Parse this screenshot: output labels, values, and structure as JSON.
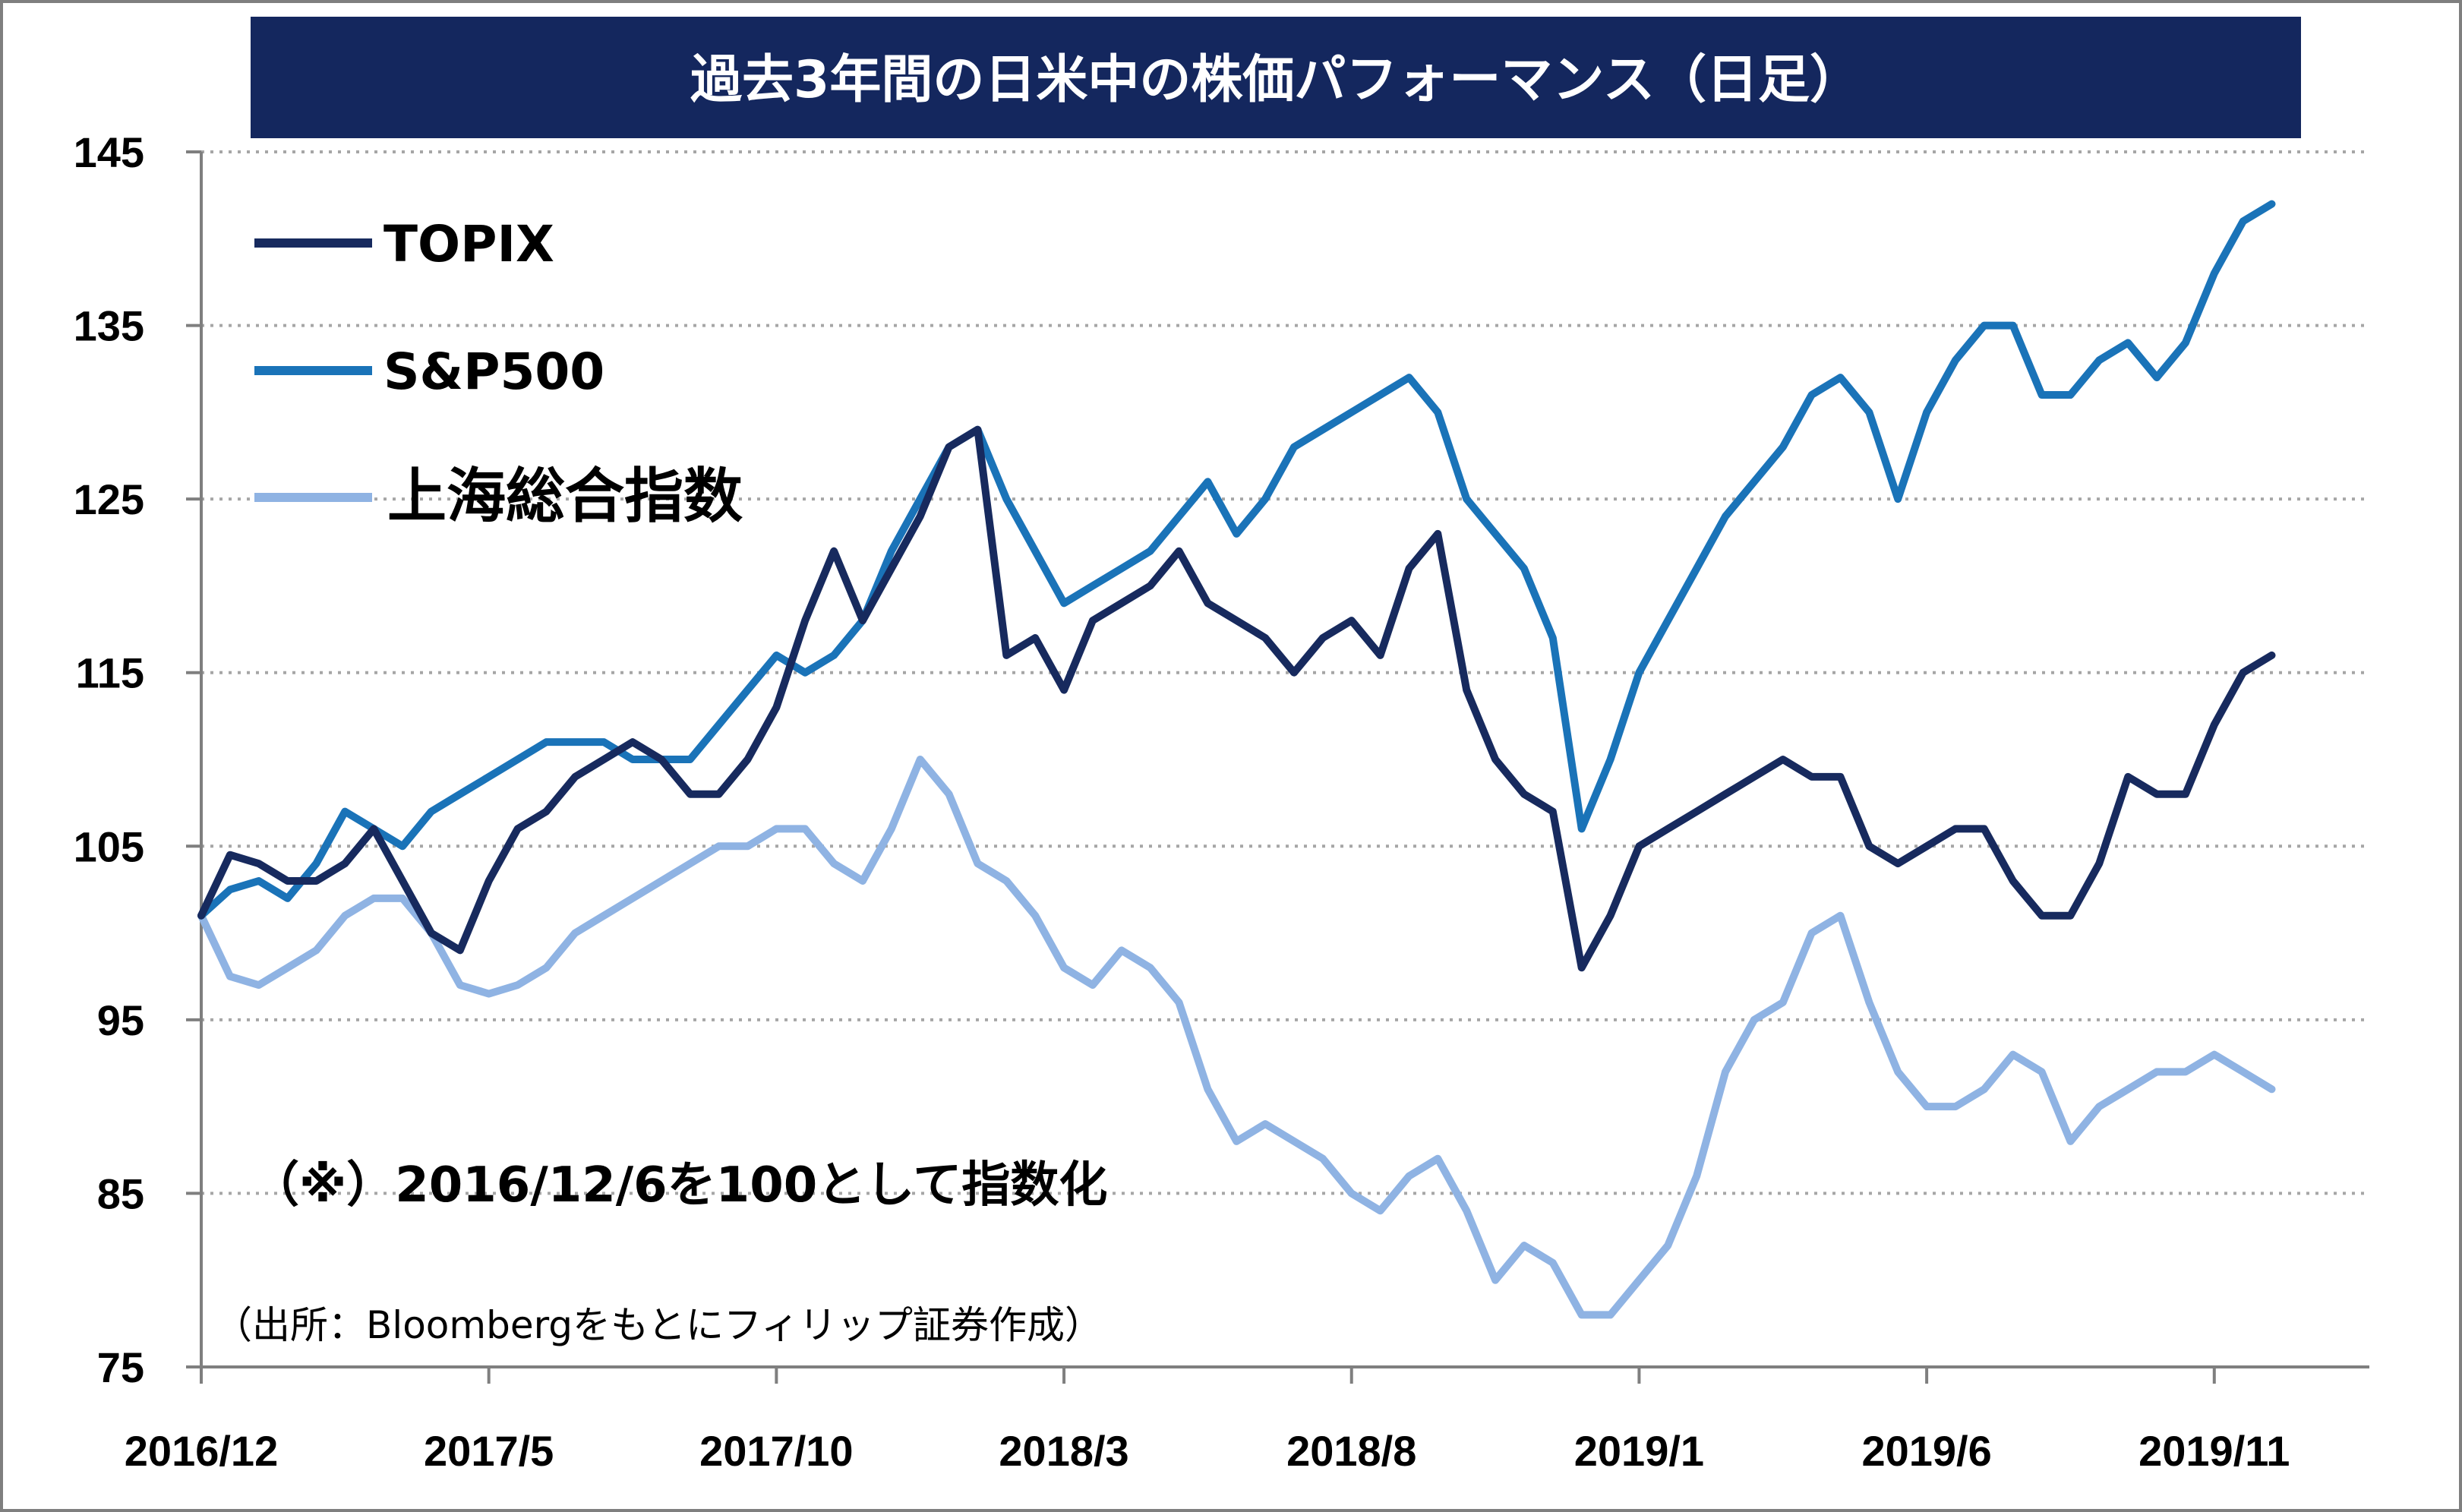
{
  "chart_data": {
    "type": "line",
    "title": "過去3年間の日米中の株価パフォーマンス（日足）",
    "note": "（※）2016/12/6を100として指数化",
    "source": "（出所：Bloombergをもとにフィリップ証券作成）",
    "xlabel": "",
    "ylabel": "",
    "ylim": [
      75,
      145
    ],
    "y_ticks": [
      145,
      135,
      125,
      115,
      105,
      95,
      85,
      75
    ],
    "x_ticks": [
      "2016/12",
      "2017/5",
      "2017/10",
      "2018/3",
      "2018/8",
      "2019/1",
      "2019/6",
      "2019/11"
    ],
    "grid": "horizontal dotted",
    "legend_position": "top-left",
    "x_months": [
      0,
      0.5,
      1,
      1.5,
      2,
      2.5,
      3,
      3.5,
      4,
      4.5,
      5,
      5.5,
      6,
      6.5,
      7,
      7.5,
      8,
      8.5,
      9,
      9.5,
      10,
      10.5,
      11,
      11.5,
      12,
      12.5,
      13,
      13.5,
      14,
      14.5,
      15,
      15.5,
      16,
      16.5,
      17,
      17.5,
      18,
      18.5,
      19,
      19.5,
      20,
      20.5,
      21,
      21.5,
      22,
      22.5,
      23,
      23.5,
      24,
      24.5,
      25,
      25.5,
      26,
      26.5,
      27,
      27.5,
      28,
      28.5,
      29,
      29.5,
      30,
      30.5,
      31,
      31.5,
      32,
      32.5,
      33,
      33.5,
      34,
      34.5,
      35,
      35.5,
      36
    ],
    "series": [
      {
        "name": "TOPIX",
        "color": "#172a5e",
        "values": [
          101,
          104.5,
          104,
          103,
          103,
          104,
          106,
          103,
          100,
          99,
          103,
          106,
          107,
          109,
          110,
          111,
          110,
          108,
          108,
          110,
          113,
          118,
          122,
          118,
          121,
          124,
          128,
          129,
          116,
          117,
          114,
          118,
          119,
          120,
          122,
          119,
          118,
          117,
          115,
          117,
          118,
          116,
          121,
          123,
          114,
          110,
          108,
          107,
          98,
          101,
          105,
          106,
          107,
          108,
          109,
          110,
          109,
          109,
          105,
          104,
          105,
          106,
          106,
          103,
          101,
          101,
          104,
          109,
          108,
          108,
          112,
          115,
          116
        ]
      },
      {
        "name": "S&P500",
        "color": "#1a73b8",
        "values": [
          101,
          102.5,
          103,
          102,
          104,
          107,
          106,
          105,
          107,
          108,
          109,
          110,
          111,
          111,
          111,
          110,
          110,
          110,
          112,
          114,
          116,
          115,
          116,
          118,
          122,
          125,
          128,
          129,
          125,
          122,
          119,
          120,
          121,
          122,
          124,
          126,
          123,
          125,
          128,
          129,
          130,
          131,
          132,
          130,
          125,
          123,
          121,
          117,
          106,
          110,
          115,
          118,
          121,
          124,
          126,
          128,
          131,
          132,
          130,
          125,
          130,
          133,
          135,
          135,
          131,
          131,
          133,
          134,
          132,
          134,
          138,
          141,
          142
        ]
      },
      {
        "name": "上海総合指数",
        "color": "#8fb3e3",
        "values": [
          101,
          97.5,
          97,
          98,
          99,
          101,
          102,
          102,
          100,
          97,
          96.5,
          97,
          98,
          100,
          101,
          102,
          103,
          104,
          105,
          105,
          106,
          106,
          104,
          103,
          106,
          110,
          108,
          104,
          103,
          101,
          98,
          97,
          99,
          98,
          96,
          91,
          88,
          89,
          88,
          87,
          85,
          84,
          86,
          87,
          84,
          80,
          82,
          81,
          78,
          78,
          80,
          82,
          86,
          92,
          95,
          96,
          100,
          101,
          96,
          92,
          90,
          90,
          91,
          93,
          92,
          88,
          90,
          91,
          92,
          92,
          93,
          92,
          91
        ]
      }
    ]
  }
}
